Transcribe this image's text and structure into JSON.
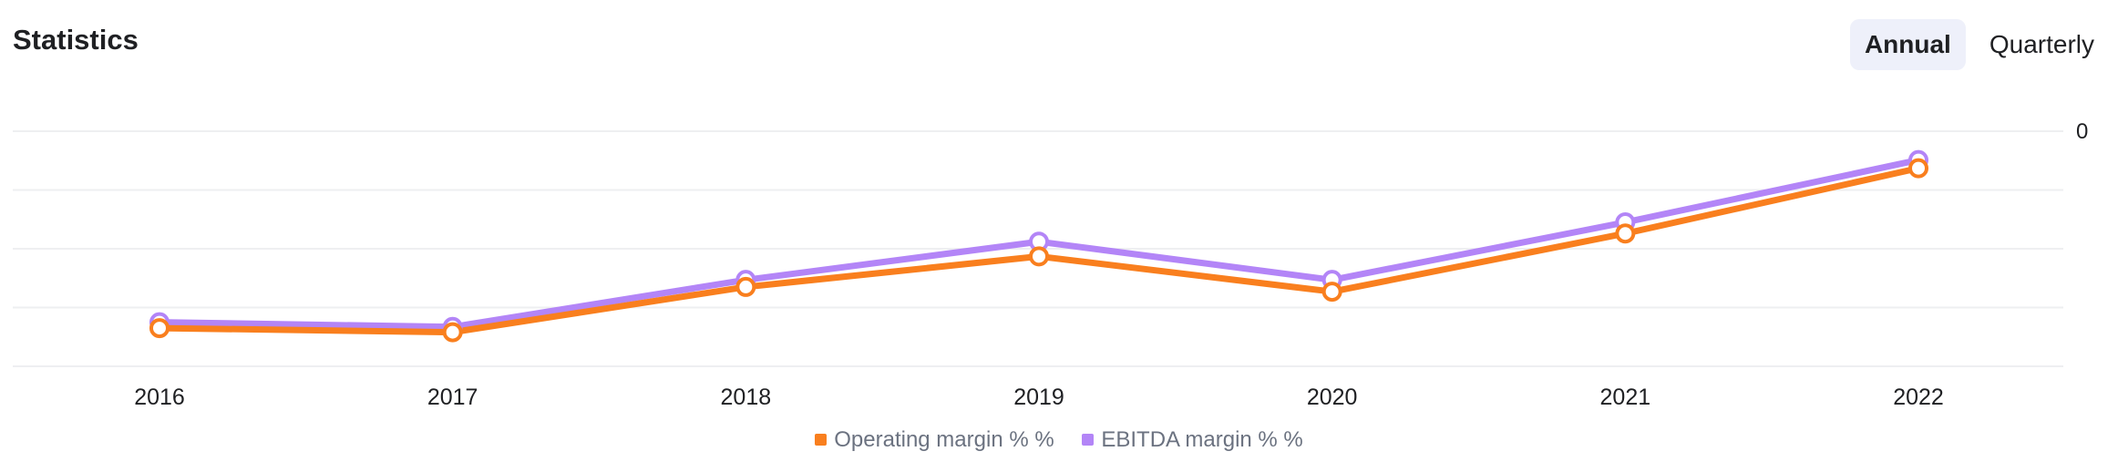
{
  "header": {
    "title": "Statistics",
    "tabs": [
      {
        "label": "Annual",
        "active": true
      },
      {
        "label": "Quarterly",
        "active": false
      }
    ]
  },
  "chart_data": {
    "type": "line",
    "title": "Statistics",
    "categories": [
      "2016",
      "2017",
      "2018",
      "2019",
      "2020",
      "2021",
      "2022"
    ],
    "y_tick_labels": [
      "0"
    ],
    "ylim": [
      -40,
      0
    ],
    "grid": true,
    "legend_position": "bottom-center",
    "series": [
      {
        "name": "Operating margin % %",
        "color": "#f97f1e",
        "values": [
          -33.5,
          -34.2,
          -26.5,
          -21.3,
          -27.3,
          -17.4,
          -6.3
        ]
      },
      {
        "name": "EBITDA margin % %",
        "color": "#b385f7",
        "values": [
          -32.5,
          -33.3,
          -25.3,
          -18.8,
          -25.3,
          -15.5,
          -4.9
        ]
      }
    ]
  }
}
